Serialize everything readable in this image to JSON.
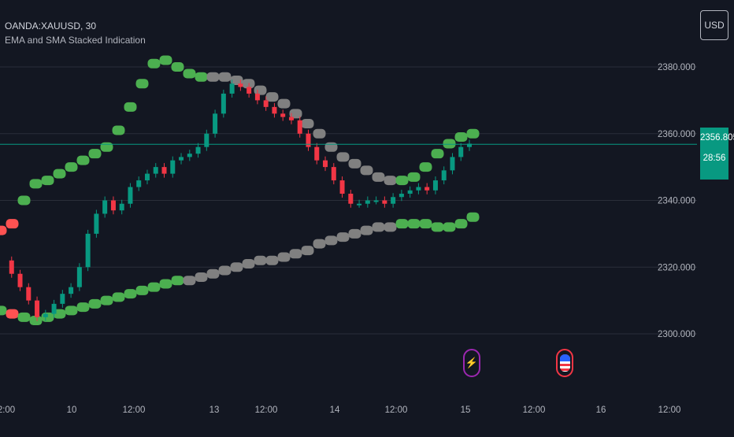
{
  "legend": {
    "symbol": "OANDA:XAUUSD, 30",
    "indicator": "EMA and SMA Stacked Indication"
  },
  "currency_button": "USD",
  "price_tag": {
    "price": "2356.805",
    "countdown": "28:56"
  },
  "price_axis_labels": [
    "2380.000",
    "2360.000",
    "2340.000",
    "2320.000",
    "2300.000"
  ],
  "time_axis_labels": [
    "2:00",
    "10",
    "12:00",
    "13",
    "12:00",
    "14",
    "12:00",
    "15",
    "12:00",
    "16",
    "12:00"
  ],
  "events": [
    {
      "name": "lightning-event-icon"
    },
    {
      "name": "us-flag-event-icon"
    }
  ],
  "colors": {
    "background": "#131722",
    "grid": "#2a2e39",
    "band_bull": "#4caf50",
    "band_neutral": "#808080",
    "band_bear": "#ff5252",
    "candle_up": "#089981",
    "candle_down": "#f23645",
    "price_line": "#089981"
  },
  "chart_data": {
    "type": "candlestick",
    "symbol": "OANDA:XAUUSD",
    "interval": "30",
    "ylim": [
      2290,
      2395
    ],
    "y_ticks": [
      2300,
      2320,
      2340,
      2360,
      2380
    ],
    "last_price": 2356.805,
    "candles_close": [
      2322,
      2318,
      2314,
      2310,
      2305,
      2306,
      2309,
      2312,
      2314,
      2320,
      2330,
      2336,
      2340,
      2337,
      2339,
      2344,
      2346,
      2348,
      2350,
      2348,
      2352,
      2353,
      2354,
      2356,
      2360,
      2366,
      2372,
      2375,
      2374,
      2372,
      2370,
      2368,
      2366,
      2365,
      2364,
      2360,
      2356,
      2352,
      2350,
      2346,
      2342,
      2339,
      2339,
      2340,
      2340,
      2339,
      2341,
      2342,
      2343,
      2344,
      2343,
      2346,
      2349,
      2353,
      2356,
      2357
    ],
    "series": [
      {
        "name": "EMA upper band",
        "values": [
          2331,
          2333,
          2340,
          2345,
          2346,
          2348,
          2350,
          2352,
          2354,
          2356,
          2361,
          2368,
          2375,
          2381,
          2382,
          2380,
          2378,
          2377,
          2377,
          2377,
          2376,
          2375,
          2373,
          2371,
          2369,
          2366,
          2363,
          2360,
          2356,
          2353,
          2351,
          2349,
          2347,
          2346,
          2346,
          2347,
          2350,
          2354,
          2357,
          2359,
          2360
        ],
        "state": [
          "bear",
          "bear",
          "bull",
          "bull",
          "bull",
          "bull",
          "bull",
          "bull",
          "bull",
          "bull",
          "bull",
          "bull",
          "bull",
          "bull",
          "bull",
          "bull",
          "bull",
          "bull",
          "neutral",
          "neutral",
          "neutral",
          "neutral",
          "neutral",
          "neutral",
          "neutral",
          "neutral",
          "neutral",
          "neutral",
          "neutral",
          "neutral",
          "neutral",
          "neutral",
          "neutral",
          "neutral",
          "bull",
          "bull",
          "bull",
          "bull",
          "bull",
          "bull",
          "bull"
        ]
      },
      {
        "name": "SMA lower band",
        "values": [
          2307,
          2306,
          2305,
          2304,
          2305,
          2306,
          2307,
          2308,
          2309,
          2310,
          2311,
          2312,
          2313,
          2314,
          2315,
          2316,
          2316,
          2317,
          2318,
          2319,
          2320,
          2321,
          2322,
          2322,
          2323,
          2324,
          2325,
          2327,
          2328,
          2329,
          2330,
          2331,
          2332,
          2332,
          2333,
          2333,
          2333,
          2332,
          2332,
          2333,
          2335
        ],
        "state": [
          "bull",
          "bear",
          "bull",
          "bull",
          "bull",
          "bull",
          "bull",
          "bull",
          "bull",
          "bull",
          "bull",
          "bull",
          "bull",
          "bull",
          "bull",
          "bull",
          "neutral",
          "neutral",
          "neutral",
          "neutral",
          "neutral",
          "neutral",
          "neutral",
          "neutral",
          "neutral",
          "neutral",
          "neutral",
          "neutral",
          "neutral",
          "neutral",
          "neutral",
          "neutral",
          "neutral",
          "neutral",
          "bull",
          "bull",
          "bull",
          "bull",
          "bull",
          "bull",
          "bull"
        ]
      }
    ]
  }
}
